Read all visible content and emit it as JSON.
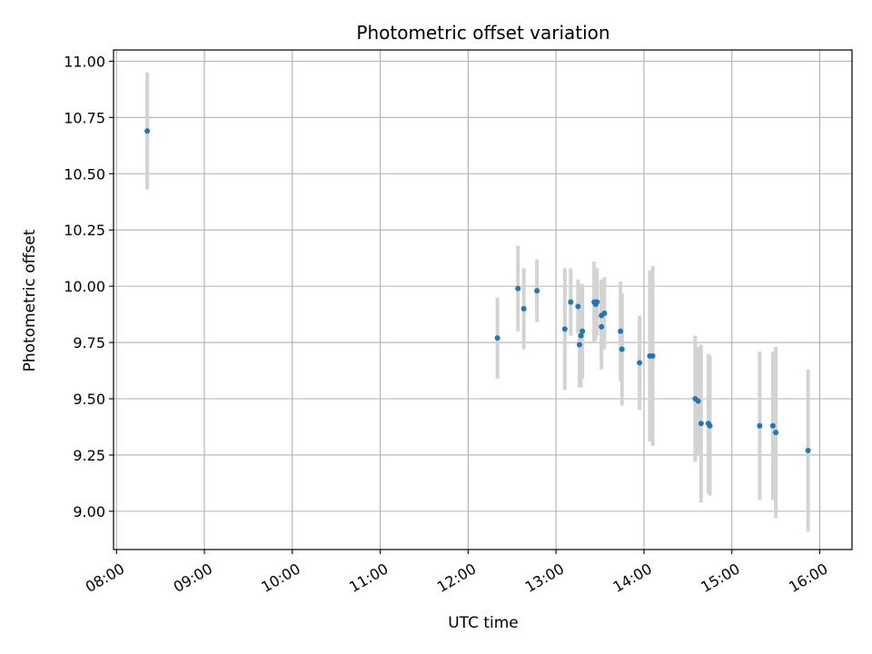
{
  "chart_data": {
    "type": "scatter",
    "title": "Photometric offset variation",
    "xlabel": "UTC time",
    "ylabel": "Photometric offset",
    "x_axis_type": "time",
    "xlim": [
      "07:58",
      "16:22"
    ],
    "ylim": [
      8.83,
      11.05
    ],
    "x_ticks": [
      "08:00",
      "09:00",
      "10:00",
      "11:00",
      "12:00",
      "13:00",
      "14:00",
      "15:00",
      "16:00"
    ],
    "y_ticks": [
      "9.00",
      "9.25",
      "9.50",
      "9.75",
      "10.00",
      "10.25",
      "10.50",
      "10.75",
      "11.00"
    ],
    "grid": true,
    "marker_color": "#1f77b4",
    "errorbar_color": "#d3d3d3",
    "points": [
      {
        "t": "08:21",
        "y": 10.69,
        "err": 0.26
      },
      {
        "t": "12:20",
        "y": 9.77,
        "err": 0.18
      },
      {
        "t": "12:34",
        "y": 9.99,
        "err": 0.19
      },
      {
        "t": "12:38",
        "y": 9.9,
        "err": 0.18
      },
      {
        "t": "12:47",
        "y": 9.98,
        "err": 0.14
      },
      {
        "t": "13:06",
        "y": 9.81,
        "err": 0.27
      },
      {
        "t": "13:10",
        "y": 9.93,
        "err": 0.15
      },
      {
        "t": "13:15",
        "y": 9.91,
        "err": 0.12
      },
      {
        "t": "13:16",
        "y": 9.74,
        "err": 0.19
      },
      {
        "t": "13:17",
        "y": 9.78,
        "err": 0.23
      },
      {
        "t": "13:18",
        "y": 9.8,
        "err": 0.21
      },
      {
        "t": "13:26",
        "y": 9.93,
        "err": 0.18
      },
      {
        "t": "13:27",
        "y": 9.92,
        "err": 0.16
      },
      {
        "t": "13:28",
        "y": 9.93,
        "err": 0.15
      },
      {
        "t": "13:31",
        "y": 9.82,
        "err": 0.19
      },
      {
        "t": "13:31",
        "y": 9.87,
        "err": 0.16
      },
      {
        "t": "13:33",
        "y": 9.88,
        "err": 0.16
      },
      {
        "t": "13:44",
        "y": 9.8,
        "err": 0.22
      },
      {
        "t": "13:45",
        "y": 9.72,
        "err": 0.25
      },
      {
        "t": "13:57",
        "y": 9.66,
        "err": 0.21
      },
      {
        "t": "14:04",
        "y": 9.69,
        "err": 0.38
      },
      {
        "t": "14:06",
        "y": 9.69,
        "err": 0.4
      },
      {
        "t": "14:35",
        "y": 9.5,
        "err": 0.28
      },
      {
        "t": "14:37",
        "y": 9.49,
        "err": 0.24
      },
      {
        "t": "14:39",
        "y": 9.39,
        "err": 0.35
      },
      {
        "t": "14:44",
        "y": 9.39,
        "err": 0.31
      },
      {
        "t": "14:45",
        "y": 9.38,
        "err": 0.31
      },
      {
        "t": "15:19",
        "y": 9.38,
        "err": 0.33
      },
      {
        "t": "15:28",
        "y": 9.38,
        "err": 0.33
      },
      {
        "t": "15:30",
        "y": 9.35,
        "err": 0.38
      },
      {
        "t": "15:52",
        "y": 9.27,
        "err": 0.36
      }
    ]
  }
}
